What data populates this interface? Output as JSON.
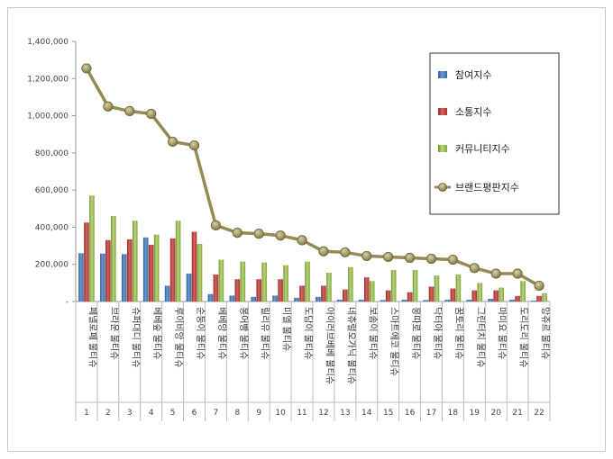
{
  "chart_data": {
    "type": "bar",
    "title": "",
    "xlabel": "",
    "ylabel": "",
    "ylim": [
      0,
      1400000
    ],
    "yticks": [
      0,
      200000,
      400000,
      600000,
      800000,
      1000000,
      1200000,
      1400000
    ],
    "ytick_labels": [
      "-",
      "200,000",
      "400,000",
      "600,000",
      "800,000",
      "1,000,000",
      "1,200,000",
      "1,400,000"
    ],
    "grid": false,
    "legend_position": "top-right",
    "categories": [
      "페넬로페 물티슈",
      "브라운 물티슈",
      "슈퍼대디 물티슈",
      "베베숲 물티슈",
      "루이비앙 물티슈",
      "순둥이 물티슈",
      "베베앙 물티슈",
      "봉어빵 물티슈",
      "릴리유 물티슈",
      "미엘 물티슈",
      "도담이 물티슈",
      "아이러브베베 물티슈",
      "네츄럴오가닉 물티슈",
      "보솜이 물티슈",
      "스마트에코 물티슈",
      "몽따로 물티슈",
      "닥터아 물티슈",
      "꿈토리 물티슈",
      "그린터치 물티슈",
      "마미요 물티슈",
      "도리도리 물티슈",
      "앙쥬르 물티슈"
    ],
    "ranks": [
      "1",
      "2",
      "3",
      "4",
      "5",
      "6",
      "7",
      "8",
      "9",
      "10",
      "11",
      "12",
      "13",
      "14",
      "15",
      "16",
      "17",
      "18",
      "19",
      "20",
      "21",
      "22"
    ],
    "series": [
      {
        "name": "참여지수",
        "kind": "bar",
        "color": "#4f81bd",
        "values": [
          260000,
          258000,
          255000,
          345000,
          85000,
          150000,
          40000,
          32000,
          25000,
          32000,
          20000,
          25000,
          10000,
          10000,
          8000,
          10000,
          8000,
          10000,
          10000,
          15000,
          10000,
          5000
        ]
      },
      {
        "name": "소통지수",
        "kind": "bar",
        "color": "#c0504d",
        "values": [
          425000,
          330000,
          335000,
          305000,
          340000,
          375000,
          145000,
          120000,
          120000,
          120000,
          85000,
          85000,
          65000,
          130000,
          60000,
          50000,
          80000,
          70000,
          60000,
          60000,
          30000,
          30000
        ]
      },
      {
        "name": "커뮤니티지수",
        "kind": "bar",
        "color": "#9bbb59",
        "values": [
          570000,
          460000,
          435000,
          360000,
          435000,
          310000,
          225000,
          215000,
          210000,
          195000,
          215000,
          155000,
          185000,
          110000,
          170000,
          170000,
          140000,
          145000,
          100000,
          75000,
          110000,
          45000
        ]
      },
      {
        "name": "브랜드평판지수",
        "kind": "line",
        "color": "#948a54",
        "values": [
          1255000,
          1050000,
          1025000,
          1010000,
          860000,
          840000,
          410000,
          370000,
          365000,
          355000,
          330000,
          270000,
          265000,
          245000,
          240000,
          235000,
          230000,
          225000,
          180000,
          150000,
          150000,
          85000
        ]
      }
    ]
  }
}
